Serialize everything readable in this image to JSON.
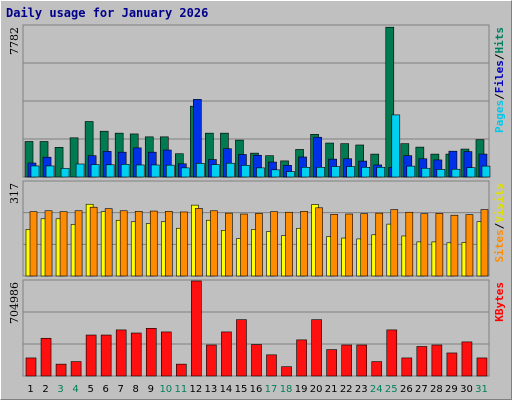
{
  "title": "Daily usage for January 2026",
  "chart_data": [
    {
      "type": "bar",
      "panel": "top",
      "ymax_label": "7782",
      "ylim": [
        0,
        7782
      ],
      "legend": [
        {
          "text": "Pages",
          "color": "#00c8e8"
        },
        {
          "text": "Files",
          "color": "#0000c0"
        },
        {
          "text": "Hits",
          "color": "#008060"
        }
      ],
      "categories": [
        "1",
        "2",
        "3",
        "4",
        "5",
        "6",
        "7",
        "8",
        "9",
        "10",
        "11",
        "12",
        "13",
        "14",
        "15",
        "16",
        "17",
        "18",
        "19",
        "20",
        "21",
        "22",
        "23",
        "24",
        "25",
        "26",
        "27",
        "28",
        "29",
        "30",
        "31"
      ],
      "series": [
        {
          "name": "Hits",
          "color": "#007a50",
          "values": [
            1830,
            1830,
            1530,
            2020,
            2860,
            2360,
            2260,
            2220,
            2070,
            2070,
            1200,
            3650,
            2260,
            2260,
            1900,
            1230,
            1100,
            830,
            1420,
            2200,
            1750,
            1720,
            1650,
            1180,
            7720,
            1720,
            1540,
            1180,
            1180,
            1440,
            1920
          ]
        },
        {
          "name": "Files",
          "color": "#0030e8",
          "values": [
            720,
            1020,
            0,
            0,
            1100,
            1320,
            1280,
            1500,
            1280,
            1390,
            680,
            4000,
            900,
            1460,
            1160,
            1120,
            770,
            600,
            1030,
            2050,
            920,
            940,
            820,
            620,
            500,
            1100,
            940,
            880,
            1330,
            1310,
            1180
          ]
        },
        {
          "name": "Pages",
          "color": "#00d0f0",
          "values": [
            570,
            570,
            440,
            670,
            640,
            630,
            650,
            620,
            620,
            610,
            470,
            700,
            640,
            710,
            600,
            470,
            370,
            280,
            500,
            500,
            540,
            540,
            500,
            500,
            3200,
            560,
            450,
            390,
            400,
            480,
            560
          ]
        }
      ]
    },
    {
      "type": "bar",
      "panel": "middle",
      "ymax_label": "317",
      "ylim": [
        0,
        317
      ],
      "legend": [
        {
          "text": "Sites",
          "color": "#ff8c00"
        },
        {
          "text": "Visits",
          "color": "#e0e000"
        }
      ],
      "categories": [
        "1",
        "2",
        "3",
        "4",
        "5",
        "6",
        "7",
        "8",
        "9",
        "10",
        "11",
        "12",
        "13",
        "14",
        "15",
        "16",
        "17",
        "18",
        "19",
        "20",
        "21",
        "22",
        "23",
        "24",
        "25",
        "26",
        "27",
        "28",
        "29",
        "30",
        "31"
      ],
      "series": [
        {
          "name": "Visits",
          "color": "#ffff00",
          "values": [
            157,
            193,
            193,
            174,
            242,
            217,
            188,
            183,
            177,
            183,
            161,
            239,
            188,
            154,
            126,
            157,
            150,
            136,
            161,
            241,
            133,
            128,
            125,
            139,
            175,
            135,
            115,
            115,
            112,
            113,
            183
          ]
        },
        {
          "name": "Sites",
          "color": "#ff8c00",
          "values": [
            217,
            220,
            217,
            220,
            232,
            227,
            220,
            218,
            219,
            218,
            216,
            228,
            220,
            212,
            209,
            211,
            217,
            215,
            218,
            230,
            208,
            209,
            210,
            212,
            224,
            215,
            210,
            211,
            205,
            207,
            224
          ]
        }
      ],
      "series_values_note": ""
    },
    {
      "type": "bar",
      "panel": "bottom",
      "ymax_label": "704986",
      "ylim": [
        0,
        704986
      ],
      "legend": [
        {
          "text": "KBytes",
          "color": "#ff0000"
        }
      ],
      "categories": [
        "1",
        "2",
        "3",
        "4",
        "5",
        "6",
        "7",
        "8",
        "9",
        "10",
        "11",
        "12",
        "13",
        "14",
        "15",
        "16",
        "17",
        "18",
        "19",
        "20",
        "21",
        "22",
        "23",
        "24",
        "25",
        "26",
        "27",
        "28",
        "29",
        "30",
        "31"
      ],
      "series": [
        {
          "name": "KBytes",
          "color": "#ff1010",
          "values": [
            134000,
            280000,
            88000,
            107000,
            304000,
            304000,
            342000,
            319000,
            354000,
            327000,
            88000,
            704986,
            230000,
            327000,
            418000,
            233000,
            157000,
            69000,
            268000,
            418000,
            196000,
            230000,
            230000,
            107000,
            342000,
            134000,
            219000,
            230000,
            171000,
            253000,
            134000
          ]
        }
      ]
    }
  ],
  "x_labels": [
    {
      "text": "1",
      "weekend": false
    },
    {
      "text": "2",
      "weekend": false
    },
    {
      "text": "3",
      "weekend": true
    },
    {
      "text": "4",
      "weekend": true
    },
    {
      "text": "5",
      "weekend": false
    },
    {
      "text": "6",
      "weekend": false
    },
    {
      "text": "7",
      "weekend": false
    },
    {
      "text": "8",
      "weekend": false
    },
    {
      "text": "9",
      "weekend": false
    },
    {
      "text": "10",
      "weekend": true
    },
    {
      "text": "11",
      "weekend": true
    },
    {
      "text": "12",
      "weekend": false
    },
    {
      "text": "13",
      "weekend": false
    },
    {
      "text": "14",
      "weekend": false
    },
    {
      "text": "15",
      "weekend": false
    },
    {
      "text": "16",
      "weekend": false
    },
    {
      "text": "17",
      "weekend": true
    },
    {
      "text": "18",
      "weekend": true
    },
    {
      "text": "19",
      "weekend": false
    },
    {
      "text": "20",
      "weekend": false
    },
    {
      "text": "21",
      "weekend": false
    },
    {
      "text": "22",
      "weekend": false
    },
    {
      "text": "23",
      "weekend": false
    },
    {
      "text": "24",
      "weekend": true
    },
    {
      "text": "25",
      "weekend": true
    },
    {
      "text": "26",
      "weekend": false
    },
    {
      "text": "27",
      "weekend": false
    },
    {
      "text": "28",
      "weekend": false
    },
    {
      "text": "29",
      "weekend": false
    },
    {
      "text": "30",
      "weekend": false
    },
    {
      "text": "31",
      "weekend": true
    }
  ],
  "colors": {
    "weekday_label": "#000000",
    "weekend_label": "#00805a",
    "plot_bg": "#c0c0c0",
    "grid": "#808080"
  }
}
